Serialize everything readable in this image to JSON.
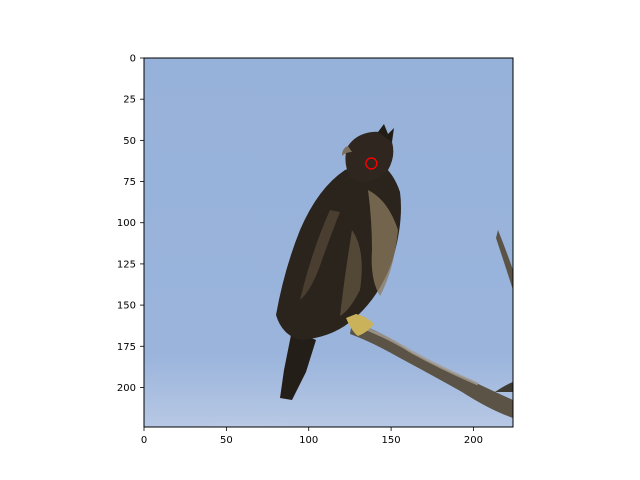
{
  "chart_data": {
    "type": "image",
    "image_size": [
      224,
      224
    ],
    "xlim": [
      0,
      224
    ],
    "ylim": [
      224,
      0
    ],
    "x_ticks": [
      0,
      50,
      100,
      150,
      200
    ],
    "y_ticks": [
      0,
      25,
      50,
      75,
      100,
      125,
      150,
      175,
      200
    ],
    "marker": {
      "x": 138,
      "y": 64,
      "shape": "circle",
      "color": "#ff0000"
    },
    "grid": false
  },
  "colors": {
    "sky_top": "#97b2da",
    "sky_bottom": "#a9c0e0",
    "bird_dark": "#2b241d",
    "bird_mid": "#4a3e31",
    "bird_light": "#8c7a5e",
    "branch": "#5b5346",
    "branch_light": "#a69f93",
    "talon": "#c9b25a",
    "beak": "#7a6e5c",
    "marker": "#ff0000"
  }
}
